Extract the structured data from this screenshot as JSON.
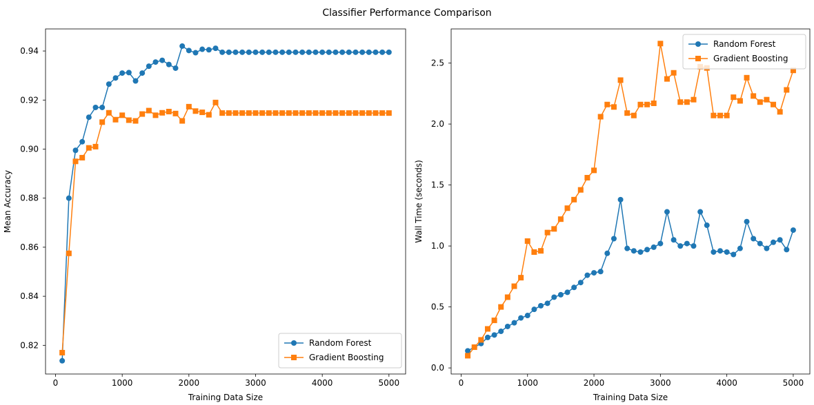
{
  "figure": {
    "title": "Classifier Performance Comparison"
  },
  "colors": {
    "random_forest": "#1f77b4",
    "gradient_boosting": "#ff7f0e"
  },
  "chart_data": [
    {
      "type": "line",
      "xlabel": "Training Data Size",
      "ylabel": "Mean Accuracy",
      "xlim": [
        -150,
        5250
      ],
      "ylim": [
        0.8083,
        0.949
      ],
      "xticks": [
        0,
        1000,
        2000,
        3000,
        4000,
        5000
      ],
      "xtick_labels": [
        "0",
        "1000",
        "2000",
        "3000",
        "4000",
        "5000"
      ],
      "yticks": [
        0.82,
        0.84,
        0.86,
        0.88,
        0.9,
        0.92,
        0.94
      ],
      "ytick_labels": [
        "0.82",
        "0.84",
        "0.86",
        "0.88",
        "0.90",
        "0.92",
        "0.94"
      ],
      "grid": false,
      "legend_position": "lower right",
      "x": [
        100,
        200,
        300,
        400,
        500,
        600,
        700,
        800,
        900,
        1000,
        1100,
        1200,
        1300,
        1400,
        1500,
        1600,
        1700,
        1800,
        1900,
        2000,
        2100,
        2200,
        2300,
        2400,
        2500,
        2600,
        2700,
        2800,
        2900,
        3000,
        3100,
        3200,
        3300,
        3400,
        3500,
        3600,
        3700,
        3800,
        3900,
        4000,
        4100,
        4200,
        4300,
        4400,
        4500,
        4600,
        4700,
        4800,
        4900,
        5000
      ],
      "series": [
        {
          "name": "Random Forest",
          "marker": "circle",
          "values": [
            0.8137,
            0.88,
            0.8995,
            0.903,
            0.913,
            0.917,
            0.917,
            0.9265,
            0.929,
            0.931,
            0.9312,
            0.9278,
            0.931,
            0.9338,
            0.9355,
            0.9362,
            0.9345,
            0.933,
            0.942,
            0.9402,
            0.9393,
            0.9407,
            0.9405,
            0.9411,
            0.9395,
            0.9395,
            0.9395,
            0.9395,
            0.9395,
            0.9395,
            0.9395,
            0.9395,
            0.9395,
            0.9395,
            0.9395,
            0.9395,
            0.9395,
            0.9395,
            0.9395,
            0.9395,
            0.9395,
            0.9395,
            0.9395,
            0.9395,
            0.9395,
            0.9395,
            0.9395,
            0.9395,
            0.9395,
            0.9395
          ]
        },
        {
          "name": "Gradient Boosting",
          "marker": "square",
          "values": [
            0.817,
            0.8575,
            0.895,
            0.8965,
            0.9005,
            0.901,
            0.911,
            0.9148,
            0.912,
            0.9138,
            0.9118,
            0.9115,
            0.9143,
            0.9157,
            0.9138,
            0.9148,
            0.9153,
            0.9145,
            0.9115,
            0.9173,
            0.9155,
            0.915,
            0.914,
            0.919,
            0.9147,
            0.9147,
            0.9147,
            0.9147,
            0.9147,
            0.9147,
            0.9147,
            0.9147,
            0.9147,
            0.9147,
            0.9147,
            0.9147,
            0.9147,
            0.9147,
            0.9147,
            0.9147,
            0.9147,
            0.9147,
            0.9147,
            0.9147,
            0.9147,
            0.9147,
            0.9147,
            0.9147,
            0.9147,
            0.9147
          ]
        }
      ]
    },
    {
      "type": "line",
      "xlabel": "Training Data Size",
      "ylabel": "Wall Time (seconds)",
      "xlim": [
        -150,
        5250
      ],
      "ylim": [
        -0.05,
        2.78
      ],
      "xticks": [
        0,
        1000,
        2000,
        3000,
        4000,
        5000
      ],
      "xtick_labels": [
        "0",
        "1000",
        "2000",
        "3000",
        "4000",
        "5000"
      ],
      "yticks": [
        0.0,
        0.5,
        1.0,
        1.5,
        2.0,
        2.5
      ],
      "ytick_labels": [
        "0.0",
        "0.5",
        "1.0",
        "1.5",
        "2.0",
        "2.5"
      ],
      "grid": false,
      "legend_position": "upper right",
      "x": [
        100,
        200,
        300,
        400,
        500,
        600,
        700,
        800,
        900,
        1000,
        1100,
        1200,
        1300,
        1400,
        1500,
        1600,
        1700,
        1800,
        1900,
        2000,
        2100,
        2200,
        2300,
        2400,
        2500,
        2600,
        2700,
        2800,
        2900,
        3000,
        3100,
        3200,
        3300,
        3400,
        3500,
        3600,
        3700,
        3800,
        3900,
        4000,
        4100,
        4200,
        4300,
        4400,
        4500,
        4600,
        4700,
        4800,
        4900,
        5000
      ],
      "series": [
        {
          "name": "Random Forest",
          "marker": "circle",
          "values": [
            0.14,
            0.17,
            0.2,
            0.25,
            0.27,
            0.3,
            0.34,
            0.37,
            0.41,
            0.43,
            0.48,
            0.51,
            0.53,
            0.58,
            0.6,
            0.62,
            0.66,
            0.7,
            0.76,
            0.78,
            0.79,
            0.94,
            1.06,
            1.38,
            0.98,
            0.96,
            0.95,
            0.97,
            0.99,
            1.02,
            1.28,
            1.05,
            1.0,
            1.02,
            1.0,
            1.28,
            1.17,
            0.95,
            0.96,
            0.95,
            0.93,
            0.98,
            1.2,
            1.06,
            1.02,
            0.98,
            1.03,
            1.05,
            0.97,
            1.13
          ]
        },
        {
          "name": "Gradient Boosting",
          "marker": "square",
          "values": [
            0.1,
            0.17,
            0.23,
            0.32,
            0.39,
            0.5,
            0.58,
            0.67,
            0.74,
            1.04,
            0.95,
            0.96,
            1.11,
            1.14,
            1.22,
            1.31,
            1.38,
            1.46,
            1.56,
            1.62,
            2.06,
            2.16,
            2.14,
            2.36,
            2.09,
            2.07,
            2.16,
            2.16,
            2.17,
            2.66,
            2.37,
            2.42,
            2.18,
            2.18,
            2.2,
            2.47,
            2.46,
            2.07,
            2.07,
            2.07,
            2.22,
            2.19,
            2.38,
            2.23,
            2.18,
            2.2,
            2.16,
            2.1,
            2.28,
            2.44
          ]
        }
      ]
    }
  ]
}
